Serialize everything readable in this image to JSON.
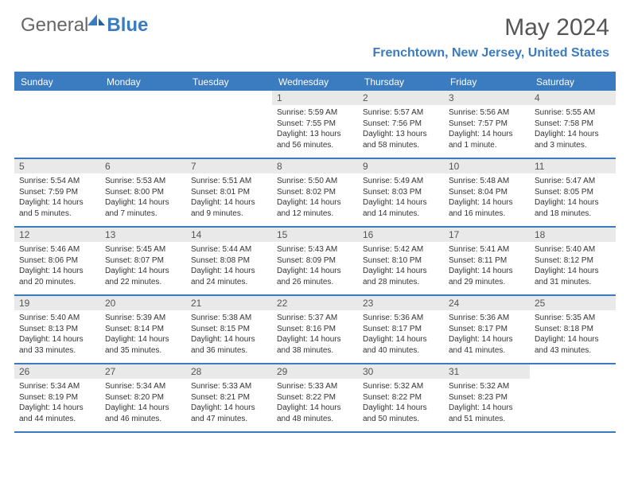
{
  "logo": {
    "gray": "General",
    "blue": "Blue"
  },
  "title": "May 2024",
  "location": "Frenchtown, New Jersey, United States",
  "colors": {
    "accent": "#3b7bbf",
    "header_gray": "#666666",
    "cell_num_bg": "#e9e9e9",
    "text": "#333333",
    "border": "#3b7bbf"
  },
  "weekdays": [
    "Sunday",
    "Monday",
    "Tuesday",
    "Wednesday",
    "Thursday",
    "Friday",
    "Saturday"
  ],
  "weeks": [
    [
      {
        "empty": true
      },
      {
        "empty": true
      },
      {
        "empty": true
      },
      {
        "num": "1",
        "sunrise": "Sunrise: 5:59 AM",
        "sunset": "Sunset: 7:55 PM",
        "daylight1": "Daylight: 13 hours",
        "daylight2": "and 56 minutes."
      },
      {
        "num": "2",
        "sunrise": "Sunrise: 5:57 AM",
        "sunset": "Sunset: 7:56 PM",
        "daylight1": "Daylight: 13 hours",
        "daylight2": "and 58 minutes."
      },
      {
        "num": "3",
        "sunrise": "Sunrise: 5:56 AM",
        "sunset": "Sunset: 7:57 PM",
        "daylight1": "Daylight: 14 hours",
        "daylight2": "and 1 minute."
      },
      {
        "num": "4",
        "sunrise": "Sunrise: 5:55 AM",
        "sunset": "Sunset: 7:58 PM",
        "daylight1": "Daylight: 14 hours",
        "daylight2": "and 3 minutes."
      }
    ],
    [
      {
        "num": "5",
        "sunrise": "Sunrise: 5:54 AM",
        "sunset": "Sunset: 7:59 PM",
        "daylight1": "Daylight: 14 hours",
        "daylight2": "and 5 minutes."
      },
      {
        "num": "6",
        "sunrise": "Sunrise: 5:53 AM",
        "sunset": "Sunset: 8:00 PM",
        "daylight1": "Daylight: 14 hours",
        "daylight2": "and 7 minutes."
      },
      {
        "num": "7",
        "sunrise": "Sunrise: 5:51 AM",
        "sunset": "Sunset: 8:01 PM",
        "daylight1": "Daylight: 14 hours",
        "daylight2": "and 9 minutes."
      },
      {
        "num": "8",
        "sunrise": "Sunrise: 5:50 AM",
        "sunset": "Sunset: 8:02 PM",
        "daylight1": "Daylight: 14 hours",
        "daylight2": "and 12 minutes."
      },
      {
        "num": "9",
        "sunrise": "Sunrise: 5:49 AM",
        "sunset": "Sunset: 8:03 PM",
        "daylight1": "Daylight: 14 hours",
        "daylight2": "and 14 minutes."
      },
      {
        "num": "10",
        "sunrise": "Sunrise: 5:48 AM",
        "sunset": "Sunset: 8:04 PM",
        "daylight1": "Daylight: 14 hours",
        "daylight2": "and 16 minutes."
      },
      {
        "num": "11",
        "sunrise": "Sunrise: 5:47 AM",
        "sunset": "Sunset: 8:05 PM",
        "daylight1": "Daylight: 14 hours",
        "daylight2": "and 18 minutes."
      }
    ],
    [
      {
        "num": "12",
        "sunrise": "Sunrise: 5:46 AM",
        "sunset": "Sunset: 8:06 PM",
        "daylight1": "Daylight: 14 hours",
        "daylight2": "and 20 minutes."
      },
      {
        "num": "13",
        "sunrise": "Sunrise: 5:45 AM",
        "sunset": "Sunset: 8:07 PM",
        "daylight1": "Daylight: 14 hours",
        "daylight2": "and 22 minutes."
      },
      {
        "num": "14",
        "sunrise": "Sunrise: 5:44 AM",
        "sunset": "Sunset: 8:08 PM",
        "daylight1": "Daylight: 14 hours",
        "daylight2": "and 24 minutes."
      },
      {
        "num": "15",
        "sunrise": "Sunrise: 5:43 AM",
        "sunset": "Sunset: 8:09 PM",
        "daylight1": "Daylight: 14 hours",
        "daylight2": "and 26 minutes."
      },
      {
        "num": "16",
        "sunrise": "Sunrise: 5:42 AM",
        "sunset": "Sunset: 8:10 PM",
        "daylight1": "Daylight: 14 hours",
        "daylight2": "and 28 minutes."
      },
      {
        "num": "17",
        "sunrise": "Sunrise: 5:41 AM",
        "sunset": "Sunset: 8:11 PM",
        "daylight1": "Daylight: 14 hours",
        "daylight2": "and 29 minutes."
      },
      {
        "num": "18",
        "sunrise": "Sunrise: 5:40 AM",
        "sunset": "Sunset: 8:12 PM",
        "daylight1": "Daylight: 14 hours",
        "daylight2": "and 31 minutes."
      }
    ],
    [
      {
        "num": "19",
        "sunrise": "Sunrise: 5:40 AM",
        "sunset": "Sunset: 8:13 PM",
        "daylight1": "Daylight: 14 hours",
        "daylight2": "and 33 minutes."
      },
      {
        "num": "20",
        "sunrise": "Sunrise: 5:39 AM",
        "sunset": "Sunset: 8:14 PM",
        "daylight1": "Daylight: 14 hours",
        "daylight2": "and 35 minutes."
      },
      {
        "num": "21",
        "sunrise": "Sunrise: 5:38 AM",
        "sunset": "Sunset: 8:15 PM",
        "daylight1": "Daylight: 14 hours",
        "daylight2": "and 36 minutes."
      },
      {
        "num": "22",
        "sunrise": "Sunrise: 5:37 AM",
        "sunset": "Sunset: 8:16 PM",
        "daylight1": "Daylight: 14 hours",
        "daylight2": "and 38 minutes."
      },
      {
        "num": "23",
        "sunrise": "Sunrise: 5:36 AM",
        "sunset": "Sunset: 8:17 PM",
        "daylight1": "Daylight: 14 hours",
        "daylight2": "and 40 minutes."
      },
      {
        "num": "24",
        "sunrise": "Sunrise: 5:36 AM",
        "sunset": "Sunset: 8:17 PM",
        "daylight1": "Daylight: 14 hours",
        "daylight2": "and 41 minutes."
      },
      {
        "num": "25",
        "sunrise": "Sunrise: 5:35 AM",
        "sunset": "Sunset: 8:18 PM",
        "daylight1": "Daylight: 14 hours",
        "daylight2": "and 43 minutes."
      }
    ],
    [
      {
        "num": "26",
        "sunrise": "Sunrise: 5:34 AM",
        "sunset": "Sunset: 8:19 PM",
        "daylight1": "Daylight: 14 hours",
        "daylight2": "and 44 minutes."
      },
      {
        "num": "27",
        "sunrise": "Sunrise: 5:34 AM",
        "sunset": "Sunset: 8:20 PM",
        "daylight1": "Daylight: 14 hours",
        "daylight2": "and 46 minutes."
      },
      {
        "num": "28",
        "sunrise": "Sunrise: 5:33 AM",
        "sunset": "Sunset: 8:21 PM",
        "daylight1": "Daylight: 14 hours",
        "daylight2": "and 47 minutes."
      },
      {
        "num": "29",
        "sunrise": "Sunrise: 5:33 AM",
        "sunset": "Sunset: 8:22 PM",
        "daylight1": "Daylight: 14 hours",
        "daylight2": "and 48 minutes."
      },
      {
        "num": "30",
        "sunrise": "Sunrise: 5:32 AM",
        "sunset": "Sunset: 8:22 PM",
        "daylight1": "Daylight: 14 hours",
        "daylight2": "and 50 minutes."
      },
      {
        "num": "31",
        "sunrise": "Sunrise: 5:32 AM",
        "sunset": "Sunset: 8:23 PM",
        "daylight1": "Daylight: 14 hours",
        "daylight2": "and 51 minutes."
      },
      {
        "empty": true
      }
    ]
  ]
}
